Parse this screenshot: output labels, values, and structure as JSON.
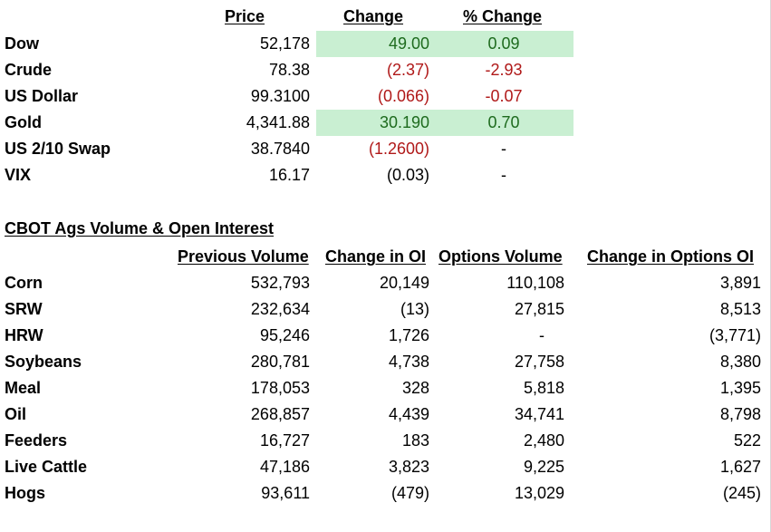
{
  "markets": {
    "headers": {
      "price": "Price",
      "change": "Change ",
      "pct_change": "% Change"
    },
    "rows": [
      {
        "name": "Dow",
        "price": "52,178",
        "change": "49.00",
        "pct": "0.09",
        "dir": "pos",
        "highlight": true
      },
      {
        "name": "Crude",
        "price": "78.38",
        "change": "(2.37)",
        "pct": "-2.93",
        "dir": "neg",
        "highlight": false
      },
      {
        "name": "US Dollar",
        "price": "99.3100",
        "change": "(0.066)",
        "pct": "-0.07",
        "dir": "neg",
        "highlight": false
      },
      {
        "name": "Gold",
        "price": "4,341.88",
        "change": "30.190",
        "pct": "0.70",
        "dir": "pos",
        "highlight": true
      },
      {
        "name": "US 2/10 Swap",
        "price": "38.7840",
        "change": "(1.2600)",
        "pct": "-",
        "dir": "neg",
        "highlight": false
      },
      {
        "name": "VIX",
        "price": "16.17",
        "change": "(0.03)",
        "pct": "-",
        "dir": "none",
        "highlight": false
      }
    ],
    "colors": {
      "positive": "#1e6b1e",
      "negative": "#b01919",
      "highlight": "#c9efd2"
    }
  },
  "cbot": {
    "title": "CBOT Ags Volume & Open Interest",
    "headers": {
      "prev_volume": "Previous Volume",
      "change_oi": "Change in OI",
      "options_volume": "Options Volume",
      "change_options_oi": "Change in Options OI"
    },
    "rows": [
      {
        "name": "Corn",
        "prev_volume": "532,793",
        "change_oi": "20,149",
        "options_volume": "110,108",
        "change_options_oi": "3,891"
      },
      {
        "name": "SRW",
        "prev_volume": "232,634",
        "change_oi": "(13)",
        "options_volume": "27,815",
        "change_options_oi": "8,513"
      },
      {
        "name": "HRW",
        "prev_volume": "95,246",
        "change_oi": "1,726",
        "options_volume": "-",
        "change_options_oi": "(3,771)"
      },
      {
        "name": "Soybeans",
        "prev_volume": "280,781",
        "change_oi": "4,738",
        "options_volume": "27,758",
        "change_options_oi": "8,380"
      },
      {
        "name": "Meal",
        "prev_volume": "178,053",
        "change_oi": "328",
        "options_volume": "5,818",
        "change_options_oi": "1,395"
      },
      {
        "name": "Oil",
        "prev_volume": "268,857",
        "change_oi": "4,439",
        "options_volume": "34,741",
        "change_options_oi": "8,798"
      },
      {
        "name": "Feeders",
        "prev_volume": "16,727",
        "change_oi": "183",
        "options_volume": "2,480",
        "change_options_oi": "522"
      },
      {
        "name": "Live Cattle",
        "prev_volume": "47,186",
        "change_oi": "3,823",
        "options_volume": "9,225",
        "change_options_oi": "1,627"
      },
      {
        "name": "Hogs",
        "prev_volume": "93,611",
        "change_oi": "(479)",
        "options_volume": "13,029",
        "change_options_oi": "(245)"
      }
    ]
  }
}
